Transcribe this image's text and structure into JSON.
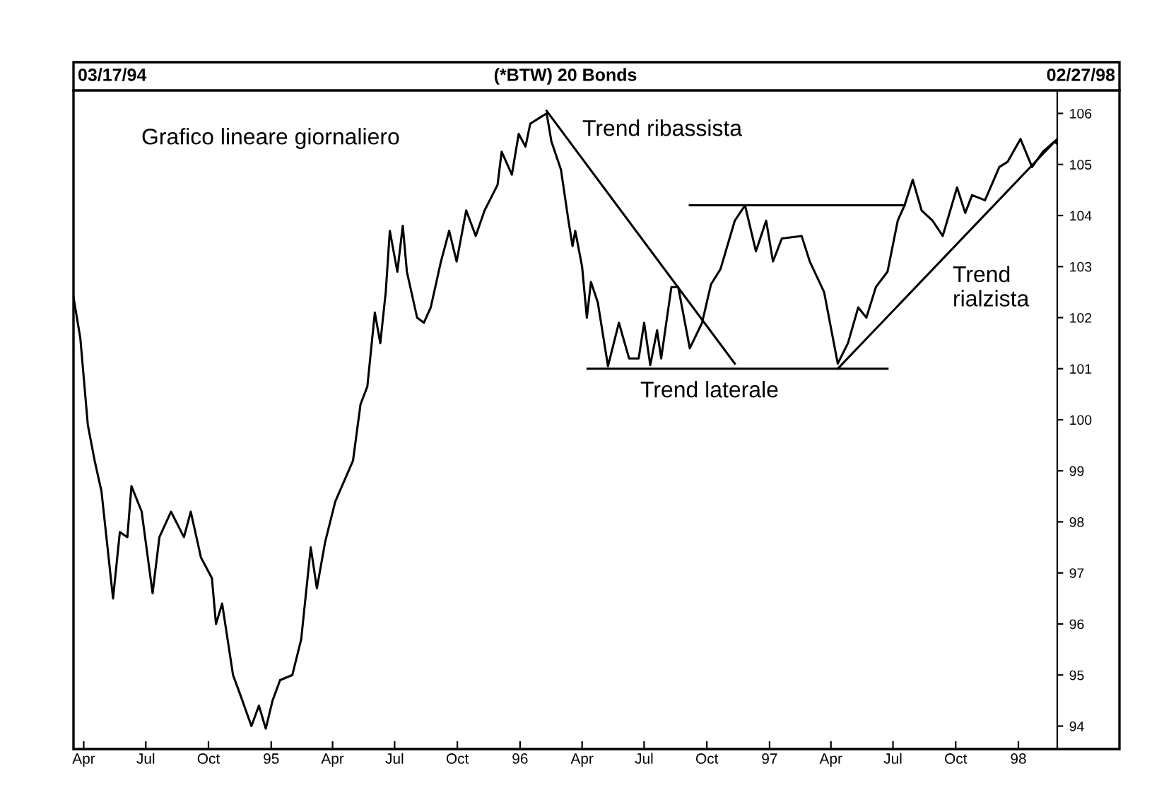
{
  "chart_data": {
    "type": "line",
    "title": "(*BTW) 20 Bonds",
    "annotations": [
      "03/17/94",
      "02/27/98",
      "Grafico lineare giornaliero",
      "Trend ribassista",
      "Trend laterale",
      "Trend\nrialzista"
    ],
    "xlim": [
      "1994-03-17",
      "1998-02-27"
    ],
    "xticks": [
      {
        "value": "1994-04-01",
        "label": "Apr"
      },
      {
        "value": "1994-07-01",
        "label": "Jul"
      },
      {
        "value": "1994-10-01",
        "label": "Oct"
      },
      {
        "value": "1995-01-01",
        "label": "95"
      },
      {
        "value": "1995-04-01",
        "label": "Apr"
      },
      {
        "value": "1995-07-01",
        "label": "Jul"
      },
      {
        "value": "1995-10-01",
        "label": "Oct"
      },
      {
        "value": "1996-01-01",
        "label": "96"
      },
      {
        "value": "1996-04-01",
        "label": "Apr"
      },
      {
        "value": "1996-07-01",
        "label": "Jul"
      },
      {
        "value": "1996-10-01",
        "label": "Oct"
      },
      {
        "value": "1997-01-01",
        "label": "97"
      },
      {
        "value": "1997-04-01",
        "label": "Apr"
      },
      {
        "value": "1997-07-01",
        "label": "Jul"
      },
      {
        "value": "1997-10-01",
        "label": "Oct"
      },
      {
        "value": "1998-01-01",
        "label": "98"
      }
    ],
    "ylim": [
      93.55,
      106.45
    ],
    "yticks": [
      94,
      95,
      96,
      97,
      98,
      99,
      100,
      101,
      102,
      103,
      104,
      105,
      106
    ],
    "grid": false,
    "legend": false,
    "series": [
      {
        "color": "#000000",
        "x": [
          "1994-03-17",
          "1994-03-27",
          "1994-04-07",
          "1994-04-17",
          "1994-04-27",
          "1994-05-14",
          "1994-05-24",
          "1994-06-04",
          "1994-06-10",
          "1994-06-25",
          "1994-07-11",
          "1994-07-21",
          "1994-08-07",
          "1994-08-26",
          "1994-09-05",
          "1994-09-20",
          "1994-10-06",
          "1994-10-12",
          "1994-10-21",
          "1994-11-06",
          "1994-11-17",
          "1994-12-03",
          "1994-12-14",
          "1994-12-24",
          "1995-01-03",
          "1995-01-14",
          "1995-02-01",
          "1995-02-14",
          "1995-02-28",
          "1995-03-09",
          "1995-03-21",
          "1995-04-05",
          "1995-05-01",
          "1995-05-12",
          "1995-05-22",
          "1995-06-02",
          "1995-06-10",
          "1995-06-18",
          "1995-06-24",
          "1995-07-05",
          "1995-07-13",
          "1995-07-19",
          "1995-08-03",
          "1995-08-13",
          "1995-08-23",
          "1995-09-07",
          "1995-09-19",
          "1995-09-30",
          "1995-10-14",
          "1995-10-28",
          "1995-11-10",
          "1995-11-29",
          "1995-12-05",
          "1995-12-20",
          "1995-12-30",
          "1996-01-09",
          "1996-01-16",
          "1996-02-09",
          "1996-02-16",
          "1996-03-01",
          "1996-03-12",
          "1996-03-18",
          "1996-03-22",
          "1996-04-01",
          "1996-04-08",
          "1996-04-14",
          "1996-04-24",
          "1996-05-09",
          "1996-05-25",
          "1996-06-09",
          "1996-06-23",
          "1996-07-01",
          "1996-07-10",
          "1996-07-20",
          "1996-07-26",
          "1996-08-10",
          "1996-08-20",
          "1996-09-06",
          "1996-09-24",
          "1996-10-07",
          "1996-10-21",
          "1996-11-11",
          "1996-11-26",
          "1996-12-12",
          "1996-12-27",
          "1997-01-06",
          "1997-01-19",
          "1997-02-17",
          "1997-03-01",
          "1997-03-22",
          "1997-04-11",
          "1997-04-26",
          "1997-05-11",
          "1997-05-23",
          "1997-06-06",
          "1997-06-23",
          "1997-07-08",
          "1997-07-18",
          "1997-07-30",
          "1997-08-12",
          "1997-08-28",
          "1997-09-12",
          "1997-10-03",
          "1997-10-15",
          "1997-10-25",
          "1997-11-13",
          "1997-12-04",
          "1997-12-16",
          "1998-01-04",
          "1998-01-21",
          "1998-02-06",
          "1998-02-23",
          "1998-02-27"
        ],
        "values": [
          102.4,
          101.6,
          99.9,
          99.2,
          98.6,
          96.5,
          97.8,
          97.7,
          98.7,
          98.2,
          96.6,
          97.7,
          98.2,
          97.7,
          98.2,
          97.3,
          96.9,
          96.0,
          96.4,
          95.0,
          94.6,
          94.0,
          94.4,
          93.95,
          94.5,
          94.9,
          95.0,
          95.7,
          97.5,
          96.7,
          97.6,
          98.4,
          99.2,
          100.3,
          100.65,
          102.1,
          101.5,
          102.5,
          103.7,
          102.9,
          103.8,
          102.9,
          102.0,
          101.9,
          102.2,
          103.1,
          103.7,
          103.1,
          104.1,
          103.6,
          104.1,
          104.6,
          105.25,
          104.8,
          105.6,
          105.35,
          105.8,
          106.0,
          105.45,
          104.9,
          103.9,
          103.4,
          103.7,
          103.0,
          102.0,
          102.7,
          102.3,
          101.05,
          101.9,
          101.2,
          101.2,
          101.9,
          101.07,
          101.75,
          101.2,
          102.6,
          102.6,
          101.4,
          101.9,
          102.65,
          102.95,
          103.9,
          104.2,
          103.3,
          103.9,
          103.1,
          103.55,
          103.6,
          103.1,
          102.5,
          101.1,
          101.5,
          102.2,
          102.0,
          102.6,
          102.9,
          103.9,
          104.2,
          104.7,
          104.1,
          103.9,
          103.6,
          104.55,
          104.05,
          104.4,
          104.3,
          104.95,
          105.05,
          105.5,
          104.95,
          105.25,
          105.45,
          105.4
        ]
      },
      {
        "color": "#000000",
        "x": [
          "1996-02-09",
          "1996-11-11"
        ],
        "values": [
          106.05,
          101.1
        ]
      },
      {
        "color": "#000000",
        "x": [
          "1996-04-09",
          "1997-06-23"
        ],
        "values": [
          101.0,
          101.0
        ]
      },
      {
        "color": "#000000",
        "x": [
          "1996-09-06",
          "1997-07-18"
        ],
        "values": [
          104.2,
          104.2
        ]
      },
      {
        "color": "#000000",
        "x": [
          "1997-04-11",
          "1998-02-27"
        ],
        "values": [
          101.0,
          105.5
        ]
      }
    ]
  }
}
